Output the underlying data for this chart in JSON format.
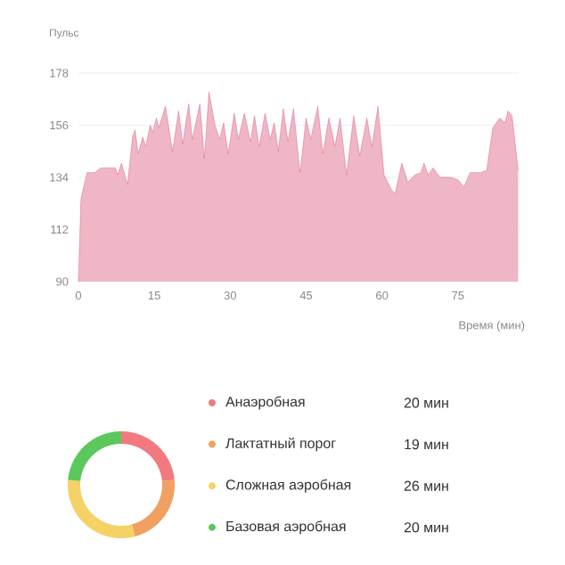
{
  "chart_data": [
    {
      "type": "area",
      "ylabel": "Пульс",
      "xlabel": "Время (мин)",
      "color": "#d84a6e",
      "grid": "y",
      "xlim": [
        0,
        87
      ],
      "ylim": [
        90,
        178
      ],
      "xticks": [
        0,
        15,
        30,
        45,
        60,
        75
      ],
      "yticks": [
        90,
        112,
        134,
        156,
        178
      ],
      "x": [
        0,
        0.5,
        1.7,
        3.2,
        4.4,
        6.2,
        7.3,
        7.8,
        8.5,
        9.7,
        10.7,
        11.2,
        11.8,
        12.7,
        13.3,
        14.2,
        14.7,
        15.4,
        15.9,
        17.2,
        18.6,
        19.8,
        20.6,
        21.8,
        22.5,
        24,
        24.9,
        25.8,
        27,
        27.9,
        28.7,
        29.6,
        30.8,
        31.6,
        32.8,
        34,
        34.8,
        35.7,
        36.9,
        37.9,
        38.7,
        39.5,
        40.5,
        41.4,
        42.5,
        43.8,
        45,
        45.9,
        47.3,
        48.3,
        49.5,
        50.7,
        51.7,
        53,
        54.4,
        55.6,
        57,
        58,
        59.2,
        60.4,
        61.8,
        62.6,
        63.9,
        65.1,
        66.5,
        67.7,
        68.3,
        69.1,
        70.1,
        71.5,
        73.6,
        75,
        76.2,
        77.4,
        79.5,
        80.7,
        81.9,
        83.3,
        84.3,
        84.9,
        85.7,
        86.9
      ],
      "values": [
        90,
        125,
        136,
        136,
        138,
        138,
        138,
        135,
        140,
        131,
        151,
        154,
        144,
        151,
        147,
        156,
        153,
        159,
        155,
        164,
        145,
        162,
        148,
        165,
        150,
        165,
        142,
        170,
        156,
        150,
        157,
        144,
        161,
        150,
        161,
        149,
        160,
        147,
        161,
        150,
        157,
        145,
        163,
        149,
        163,
        136,
        159,
        150,
        164,
        144,
        159,
        147,
        159,
        135,
        160,
        143,
        159,
        147,
        164,
        135,
        129,
        127,
        140,
        132,
        135,
        136,
        140,
        135,
        138,
        134,
        134,
        133,
        130,
        136,
        136,
        137,
        155,
        159,
        157,
        162,
        160,
        137
      ]
    },
    {
      "type": "donut",
      "legend": "right",
      "categories": [
        "Анаэробная",
        "Лактатный порог",
        "Сложная аэробная",
        "Базовая аэробная"
      ],
      "values": [
        20,
        19,
        26,
        20
      ],
      "value_labels": [
        "20 мин",
        "19 мин",
        "26 мин",
        "20 мин"
      ],
      "colors": [
        "#f07a80",
        "#f0a060",
        "#f5d266",
        "#5cc85c"
      ]
    }
  ]
}
